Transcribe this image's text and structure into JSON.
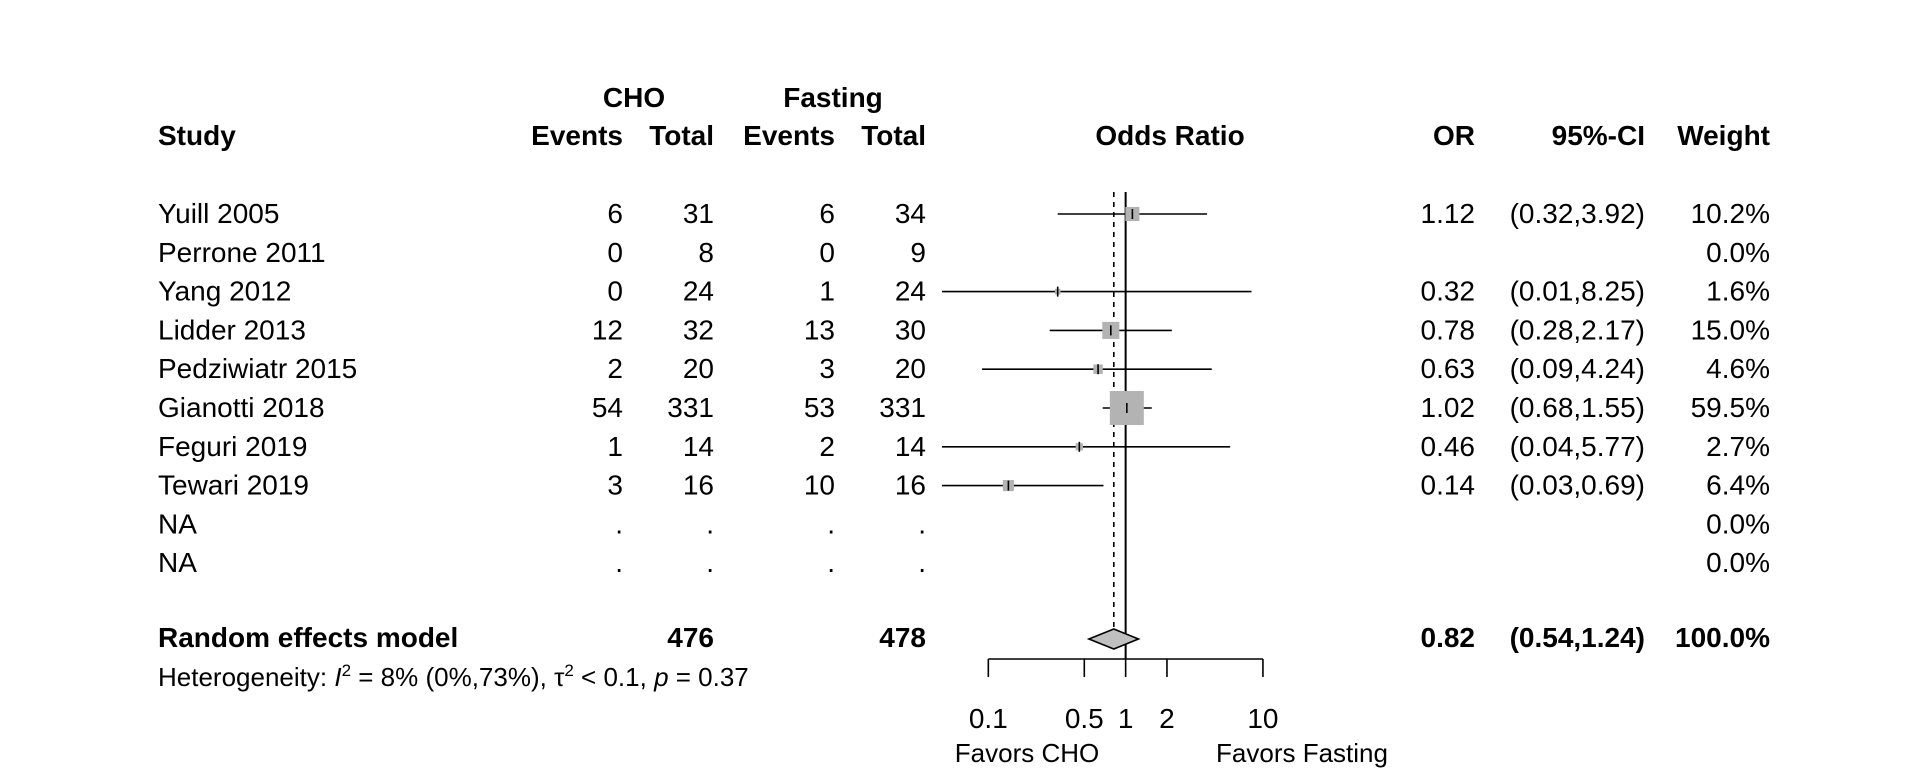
{
  "chart_data": {
    "type": "forest",
    "headers": {
      "study": "Study",
      "group1": "CHO",
      "group2": "Fasting",
      "events": "Events",
      "total": "Total",
      "odds_ratio": "Odds Ratio",
      "or": "OR",
      "ci": "95%-CI",
      "weight": "Weight"
    },
    "studies": [
      {
        "study": "Yuill 2005",
        "e1": "6",
        "n1": "31",
        "e2": "6",
        "n2": "34",
        "or": 1.12,
        "lo": 0.32,
        "hi": 3.92,
        "or_text": "1.12",
        "ci_text": "(0.32,3.92)",
        "weight_text": "10.2%"
      },
      {
        "study": "Perrone 2011",
        "e1": "0",
        "n1": "8",
        "e2": "0",
        "n2": "9",
        "or": null,
        "lo": null,
        "hi": null,
        "or_text": "",
        "ci_text": "",
        "weight_text": "0.0%"
      },
      {
        "study": "Yang 2012",
        "e1": "0",
        "n1": "24",
        "e2": "1",
        "n2": "24",
        "or": 0.32,
        "lo": 0.01,
        "hi": 8.25,
        "or_text": "0.32",
        "ci_text": "(0.01,8.25)",
        "weight_text": "1.6%"
      },
      {
        "study": "Lidder 2013",
        "e1": "12",
        "n1": "32",
        "e2": "13",
        "n2": "30",
        "or": 0.78,
        "lo": 0.28,
        "hi": 2.17,
        "or_text": "0.78",
        "ci_text": "(0.28,2.17)",
        "weight_text": "15.0%"
      },
      {
        "study": "Pedziwiatr 2015",
        "e1": "2",
        "n1": "20",
        "e2": "3",
        "n2": "20",
        "or": 0.63,
        "lo": 0.09,
        "hi": 4.24,
        "or_text": "0.63",
        "ci_text": "(0.09,4.24)",
        "weight_text": "4.6%"
      },
      {
        "study": "Gianotti 2018",
        "e1": "54",
        "n1": "331",
        "e2": "53",
        "n2": "331",
        "or": 1.02,
        "lo": 0.68,
        "hi": 1.55,
        "or_text": "1.02",
        "ci_text": "(0.68,1.55)",
        "weight_text": "59.5%"
      },
      {
        "study": "Feguri 2019",
        "e1": "1",
        "n1": "14",
        "e2": "2",
        "n2": "14",
        "or": 0.46,
        "lo": 0.04,
        "hi": 5.77,
        "or_text": "0.46",
        "ci_text": "(0.04,5.77)",
        "weight_text": "2.7%"
      },
      {
        "study": "Tewari 2019",
        "e1": "3",
        "n1": "16",
        "e2": "10",
        "n2": "16",
        "or": 0.14,
        "lo": 0.03,
        "hi": 0.69,
        "or_text": "0.14",
        "ci_text": "(0.03,0.69)",
        "weight_text": "6.4%"
      },
      {
        "study": "NA",
        "e1": ".",
        "n1": ".",
        "e2": ".",
        "n2": ".",
        "or": null,
        "lo": null,
        "hi": null,
        "or_text": "",
        "ci_text": "",
        "weight_text": "0.0%"
      },
      {
        "study": "NA",
        "e1": ".",
        "n1": ".",
        "e2": ".",
        "n2": ".",
        "or": null,
        "lo": null,
        "hi": null,
        "or_text": "",
        "ci_text": "",
        "weight_text": "0.0%"
      }
    ],
    "pooled": {
      "label": "Random effects model",
      "n1": "476",
      "n2": "478",
      "or": 0.82,
      "lo": 0.54,
      "hi": 1.24,
      "or_text": "0.82",
      "ci_text": "(0.54,1.24)",
      "weight_text": "100.0%"
    },
    "heterogeneity": {
      "prefix": "Heterogeneity: ",
      "i2_symbol": "I",
      "i2_value": " = 8% (0%,73%), ",
      "tau_symbol": "τ",
      "tau_value": " < 0.1, ",
      "p_symbol": "p",
      "p_value": " = 0.37"
    },
    "x_axis": {
      "scale": "log",
      "range": [
        0.05,
        14
      ],
      "ticks": [
        0.1,
        0.5,
        1,
        2,
        10
      ],
      "tick_labels": [
        "0.1",
        "0.5",
        "1",
        "2",
        "10"
      ],
      "left_label": "Favors CHO",
      "right_label": "Favors Fasting"
    },
    "reference_line": 1,
    "colors": {
      "square": "#b3b3b3",
      "diamond": "#c0c0c0",
      "line": "#000000"
    }
  }
}
